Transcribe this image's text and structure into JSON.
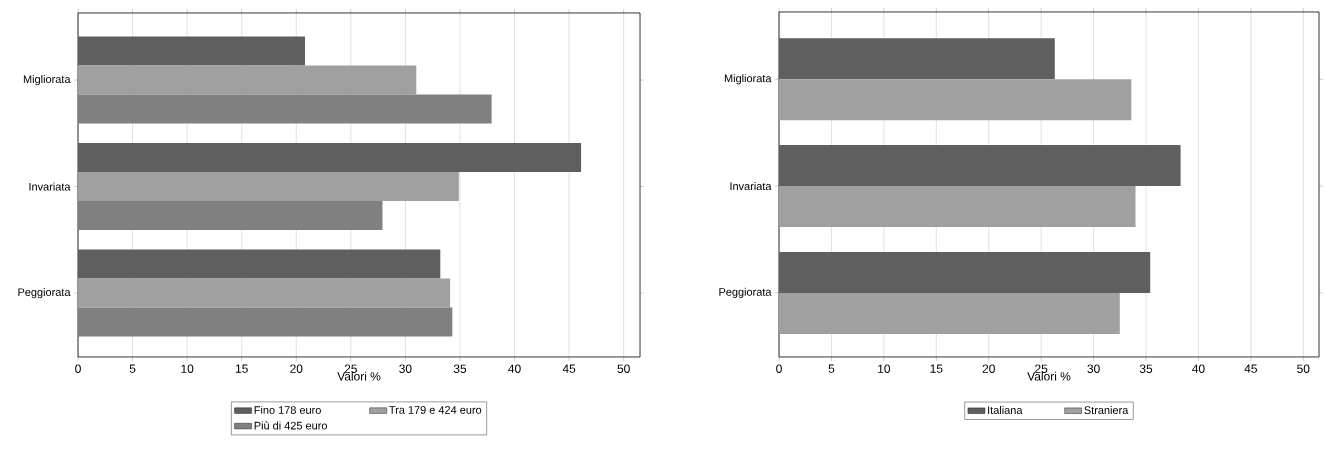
{
  "chart_data": [
    {
      "type": "bar",
      "orientation": "horizontal",
      "categories": [
        "Migliorata",
        "Invariata",
        "Peggiorata"
      ],
      "series": [
        {
          "name": "Fino 178 euro",
          "color": "#5f5f5f",
          "values": [
            20.8,
            46.1,
            33.2
          ]
        },
        {
          "name": "Tra 179 e 424 euro",
          "color": "#a0a0a0",
          "values": [
            31.0,
            34.9,
            34.1
          ]
        },
        {
          "name": "Più di 425 euro",
          "color": "#808080",
          "values": [
            37.9,
            27.9,
            34.3
          ]
        }
      ],
      "xlabel": "Valori %",
      "xlim": [
        0,
        51.5
      ],
      "xticks": [
        0,
        5,
        10,
        15,
        20,
        25,
        30,
        35,
        40,
        45,
        50
      ],
      "grid": "x",
      "legend": "bottom"
    },
    {
      "type": "bar",
      "orientation": "horizontal",
      "categories": [
        "Migliorata",
        "Invariata",
        "Peggiorata"
      ],
      "series": [
        {
          "name": "Italiana",
          "color": "#5f5f5f",
          "values": [
            26.3,
            38.3,
            35.4
          ]
        },
        {
          "name": "Straniera",
          "color": "#a0a0a0",
          "values": [
            33.6,
            34.0,
            32.5
          ]
        }
      ],
      "xlabel": "Valori %",
      "xlim": [
        0,
        51.5
      ],
      "xticks": [
        0,
        5,
        10,
        15,
        20,
        25,
        30,
        35,
        40,
        45,
        50
      ],
      "grid": "x",
      "legend": "bottom"
    }
  ]
}
